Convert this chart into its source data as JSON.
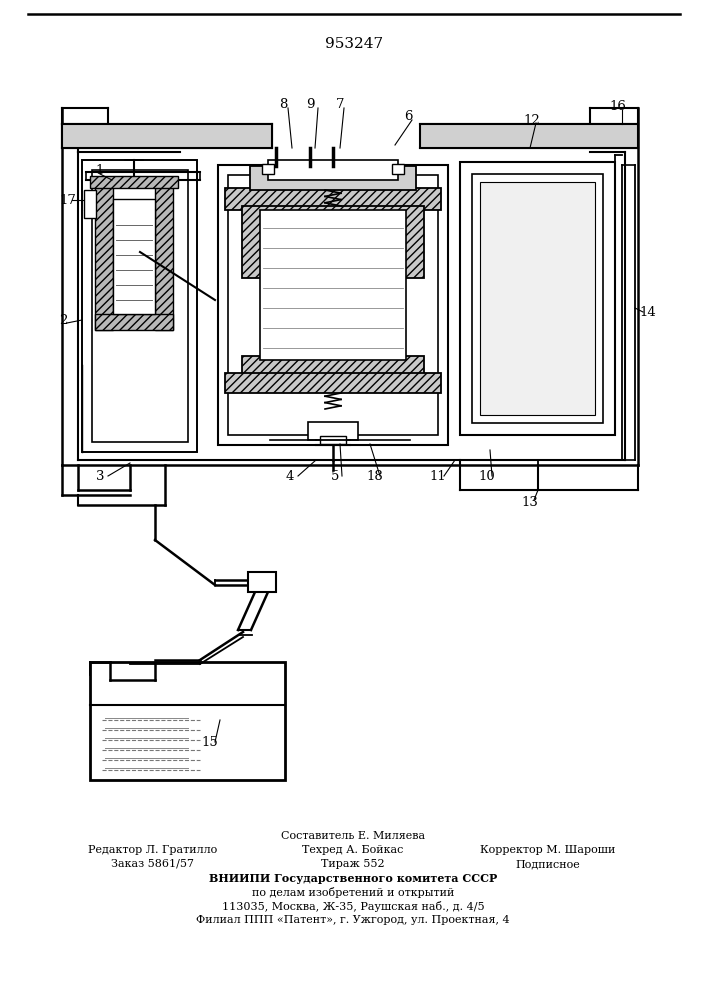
{
  "patent_number": "953247",
  "bg": "#ffffff",
  "lc": "#000000",
  "footer_col2_line0": "Составитель Е. Миляева",
  "footer_col1_line1": "Редактор Л. Гратилло",
  "footer_col2_line1": "Техред А. Бойкас",
  "footer_col3_line1": "Корректор М. Шароши",
  "footer_col1_line2": "Заказ 5861/57",
  "footer_col2_line2": "Тираж 552",
  "footer_col3_line2": "Подписное",
  "footer_vniip1": "ВНИИПИ Государственного комитета СССР",
  "footer_vniip2": "по делам изобретений и открытий",
  "footer_vniip3": "113035, Москва, Ж-35, Раушская наб., д. 4/5",
  "footer_vniip4": "Филиал ППП «Патент», г. Ужгород, ул. Проектная, 4"
}
